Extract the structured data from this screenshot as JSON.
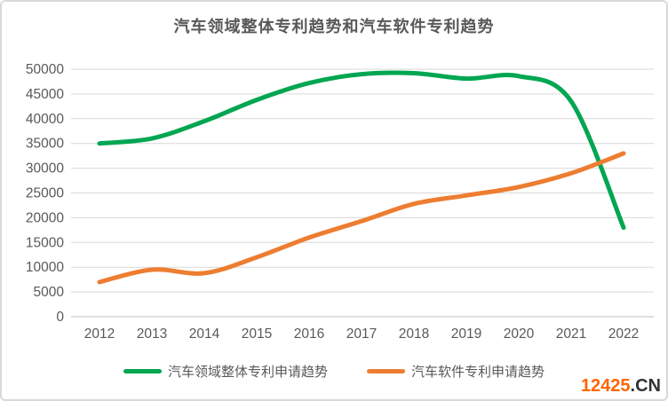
{
  "title": "汽车领域整体专利趋势和汽车软件专利趋势",
  "colors": {
    "green": "#00a651",
    "orange": "#ed7d31",
    "grid": "#d9d9d9",
    "axis_line": "#bfbfbf",
    "axis_label": "#595959",
    "title_text": "#595959",
    "watermark_number": "#ff6600",
    "watermark_suffix": "#333333"
  },
  "watermark": {
    "number": "12425",
    "suffix": ".CN"
  },
  "chart_data": {
    "type": "line",
    "title": "汽车领域整体专利趋势和汽车软件专利趋势",
    "categories": [
      "2012",
      "2013",
      "2014",
      "2015",
      "2016",
      "2017",
      "2018",
      "2019",
      "2020",
      "2021",
      "2022"
    ],
    "series": [
      {
        "name": "汽车领域整体专利申请趋势",
        "color": "#00a651",
        "values": [
          35000,
          36000,
          39500,
          43800,
          47200,
          49000,
          49200,
          48100,
          48600,
          43500,
          18000
        ]
      },
      {
        "name": "汽车软件专利申请趋势",
        "color": "#ed7d31",
        "values": [
          7000,
          9500,
          8800,
          12000,
          16000,
          19300,
          22800,
          24500,
          26200,
          29000,
          33000
        ]
      }
    ],
    "xlabel": "",
    "ylabel": "",
    "ylim": [
      0,
      50000
    ],
    "y_ticks": [
      0,
      5000,
      10000,
      15000,
      20000,
      25000,
      30000,
      35000,
      40000,
      45000,
      50000
    ],
    "grid": true,
    "smooth": true,
    "legend_position": "bottom"
  }
}
